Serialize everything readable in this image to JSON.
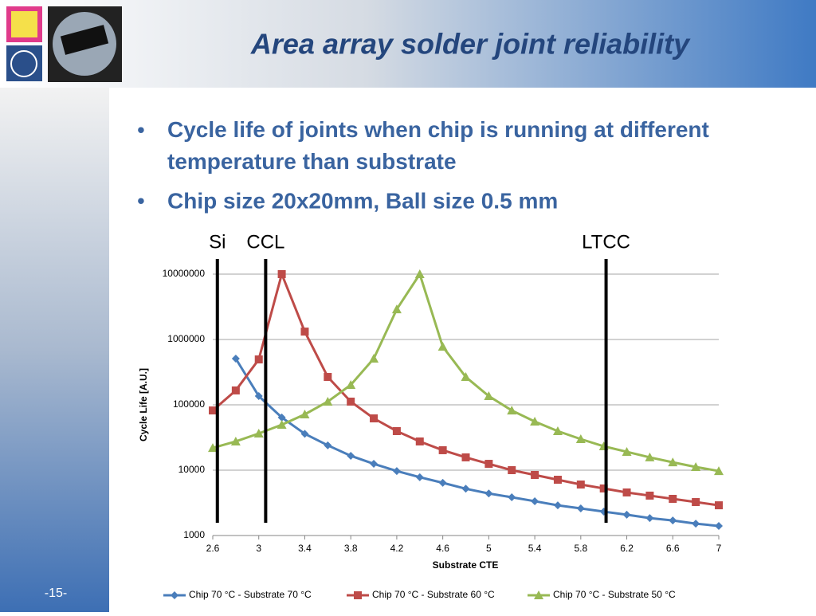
{
  "slide": {
    "title": "Area array solder joint reliability",
    "bullets": [
      "Cycle life of joints when chip is running at different temperature than substrate",
      "Chip size 20x20mm, Ball size 0.5 mm"
    ],
    "page_number": "-15-"
  },
  "chart_data": {
    "type": "line",
    "log_y": true,
    "grid": true,
    "legend": "bottom",
    "xlabel": "Substrate CTE",
    "ylabel": "Cycle Life [A.U.]",
    "x": [
      2.6,
      2.8,
      3.0,
      3.2,
      3.4,
      3.6,
      3.8,
      4.0,
      4.2,
      4.4,
      4.6,
      4.8,
      5.0,
      5.2,
      5.4,
      5.6,
      5.8,
      6.0,
      6.2,
      6.4,
      6.6,
      6.8,
      7.0
    ],
    "xlim": [
      2.6,
      7
    ],
    "xticks": [
      2.6,
      3,
      3.4,
      3.8,
      4.2,
      4.6,
      5,
      5.4,
      5.8,
      6.2,
      6.6,
      7
    ],
    "ylim": [
      1000,
      10000000
    ],
    "yticks": [
      1000,
      10000,
      100000,
      1000000,
      10000000
    ],
    "series": [
      {
        "name": "Chip 70 °C - Substrate 70 °C",
        "color": "#4a7ebb",
        "marker": "diamond",
        "values": [
          null,
          510000,
          136000,
          64000,
          36000,
          24000,
          16600,
          12500,
          9700,
          7800,
          6400,
          5200,
          4400,
          3850,
          3350,
          2900,
          2600,
          2320,
          2080,
          1850,
          1700,
          1520,
          1400
        ]
      },
      {
        "name": "Chip 70 °C - Substrate 60 °C",
        "color": "#be4b48",
        "marker": "square",
        "values": [
          82000,
          166000,
          495000,
          10000000,
          1320000,
          267000,
          112000,
          62000,
          39600,
          27500,
          20200,
          15700,
          12500,
          10000,
          8450,
          7140,
          6030,
          5250,
          4560,
          4080,
          3640,
          3250,
          2900
        ]
      },
      {
        "name": "Chip 70 °C - Substrate 50 °C",
        "color": "#98b954",
        "marker": "triangle",
        "values": [
          21900,
          27500,
          36400,
          49500,
          71400,
          112000,
          202000,
          510000,
          2900000,
          10000000,
          776000,
          267000,
          136000,
          82000,
          55500,
          39600,
          29900,
          23200,
          19100,
          15700,
          13200,
          11200,
          9700
        ]
      }
    ],
    "markers": [
      {
        "label": "Si",
        "x": 2.64
      },
      {
        "label": "CCL",
        "x": 3.06
      },
      {
        "label": "LTCC",
        "x": 6.02
      }
    ]
  }
}
